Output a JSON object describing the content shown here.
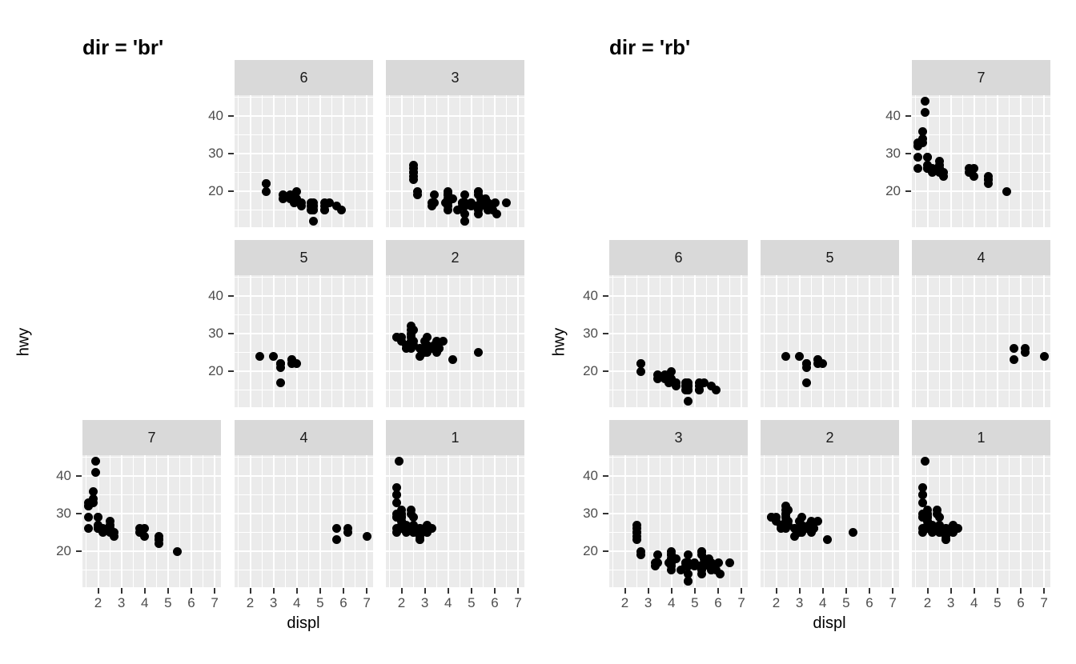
{
  "figure": {
    "background": "#FFFFFF"
  },
  "style": {
    "panel_bg": "#EBEBEB",
    "strip_bg": "#D9D9D9",
    "gridline": "#FFFFFF",
    "point_color": "#000000",
    "tick_color": "#333333",
    "tick_label_color": "#4D4D4D",
    "strip_text_color": "#1A1A1A",
    "title_color": "#000000"
  },
  "chart_data": {
    "type": "scatter",
    "xlabel": "displ",
    "ylabel": "hwy",
    "x_ticks": [
      2,
      3,
      4,
      5,
      6,
      7
    ],
    "y_ticks": [
      20,
      30,
      40
    ],
    "x_minor": [
      1.5,
      2.5,
      3.5,
      4.5,
      5.5,
      6.5
    ],
    "y_minor": [
      15,
      25,
      35,
      45
    ],
    "x_domain": [
      1.33,
      7.27
    ],
    "y_domain": [
      10.4,
      45.6
    ],
    "grid": "on",
    "legend": "none",
    "plots": [
      {
        "title": "dir = 'br'",
        "facet_layout": [
          [
            null,
            "6",
            "3"
          ],
          [
            null,
            "5",
            "2"
          ],
          [
            "7",
            "4",
            "1"
          ]
        ]
      },
      {
        "title": "dir = 'rb'",
        "facet_layout": [
          [
            null,
            null,
            "7"
          ],
          [
            "6",
            "5",
            "4"
          ],
          [
            "3",
            "2",
            "1"
          ]
        ]
      }
    ],
    "facet_points": {
      "1": [
        [
          1.8,
          29
        ],
        [
          1.8,
          29
        ],
        [
          2,
          31
        ],
        [
          2,
          30
        ],
        [
          2.8,
          26
        ],
        [
          2.8,
          26
        ],
        [
          3.1,
          27
        ],
        [
          1.8,
          26
        ],
        [
          1.8,
          25
        ],
        [
          2,
          28
        ],
        [
          2,
          27
        ],
        [
          2.8,
          25
        ],
        [
          2.8,
          25
        ],
        [
          3.1,
          25
        ],
        [
          3.1,
          25
        ],
        [
          1.8,
          30
        ],
        [
          1.8,
          33
        ],
        [
          1.8,
          35
        ],
        [
          1.8,
          37
        ],
        [
          1.8,
          35
        ],
        [
          2,
          29
        ],
        [
          2,
          26
        ],
        [
          2,
          29
        ],
        [
          2,
          28
        ],
        [
          2.8,
          24
        ],
        [
          1.9,
          44
        ],
        [
          2,
          29
        ],
        [
          2,
          29
        ],
        [
          2,
          30
        ],
        [
          2,
          26
        ],
        [
          2.5,
          29
        ],
        [
          2.5,
          26
        ],
        [
          2.8,
          23
        ],
        [
          2.8,
          23
        ],
        [
          2.2,
          26
        ],
        [
          2.2,
          27
        ],
        [
          2.4,
          30
        ],
        [
          2.4,
          31
        ],
        [
          3,
          26
        ],
        [
          3,
          26
        ],
        [
          3.3,
          26
        ],
        [
          2.2,
          26
        ],
        [
          2.2,
          25
        ],
        [
          2.5,
          25
        ],
        [
          2.5,
          27
        ],
        [
          2.5,
          25
        ],
        [
          2.5,
          26
        ]
      ],
      "2": [
        [
          2.8,
          24
        ],
        [
          3.1,
          25
        ],
        [
          4.2,
          23
        ],
        [
          2.4,
          30
        ],
        [
          2.4,
          29
        ],
        [
          3.1,
          29
        ],
        [
          3.5,
          27
        ],
        [
          3.6,
          26
        ],
        [
          2.4,
          26
        ],
        [
          2.4,
          27
        ],
        [
          2.4,
          30
        ],
        [
          2.5,
          28
        ],
        [
          3.3,
          26
        ],
        [
          2.4,
          29
        ],
        [
          2.4,
          32
        ],
        [
          2.5,
          31
        ],
        [
          2.5,
          27
        ],
        [
          3.5,
          26
        ],
        [
          3.5,
          27
        ],
        [
          3,
          26
        ],
        [
          3,
          25
        ],
        [
          3.5,
          25
        ],
        [
          3.1,
          26
        ],
        [
          3.1,
          27
        ],
        [
          3.4,
          27
        ],
        [
          3.8,
          28
        ],
        [
          5.3,
          25
        ],
        [
          2.2,
          26
        ],
        [
          2.2,
          27
        ],
        [
          2.4,
          28
        ],
        [
          2.4,
          31
        ],
        [
          3,
          26
        ],
        [
          3,
          28
        ],
        [
          3.5,
          28
        ],
        [
          1.8,
          29
        ],
        [
          1.8,
          29
        ],
        [
          2,
          28
        ],
        [
          2,
          29
        ],
        [
          2.8,
          26
        ],
        [
          2.8,
          26
        ],
        [
          3.6,
          26
        ]
      ],
      "3": [
        [
          5.3,
          20
        ],
        [
          5.3,
          15
        ],
        [
          5.3,
          20
        ],
        [
          5.7,
          17
        ],
        [
          6,
          17
        ],
        [
          5.3,
          14
        ],
        [
          5.3,
          19
        ],
        [
          5.7,
          15
        ],
        [
          6.5,
          17
        ],
        [
          3.9,
          17
        ],
        [
          4.7,
          17
        ],
        [
          4.7,
          12
        ],
        [
          4.7,
          16
        ],
        [
          5.2,
          16
        ],
        [
          5.2,
          16
        ],
        [
          5.9,
          15
        ],
        [
          4.6,
          17
        ],
        [
          5.4,
          17
        ],
        [
          5.4,
          18
        ],
        [
          4,
          17
        ],
        [
          4,
          17
        ],
        [
          4,
          19
        ],
        [
          4,
          19
        ],
        [
          4.6,
          17
        ],
        [
          5,
          17
        ],
        [
          4,
          20
        ],
        [
          4,
          19
        ],
        [
          4,
          18
        ],
        [
          4.7,
          19
        ],
        [
          4.7,
          14
        ],
        [
          4.7,
          12
        ],
        [
          5.7,
          16
        ],
        [
          6.1,
          14
        ],
        [
          4,
          15
        ],
        [
          4.2,
          18
        ],
        [
          4.4,
          15
        ],
        [
          4.6,
          16
        ],
        [
          5.4,
          16
        ],
        [
          5.4,
          17
        ],
        [
          5.4,
          18
        ],
        [
          4,
          17
        ],
        [
          4,
          19
        ],
        [
          4.6,
          17
        ],
        [
          5,
          16
        ],
        [
          3.3,
          17
        ],
        [
          3.3,
          16
        ],
        [
          4,
          16
        ],
        [
          5.6,
          18
        ],
        [
          2.5,
          26
        ],
        [
          2.5,
          27
        ],
        [
          2.5,
          25
        ],
        [
          2.5,
          23
        ],
        [
          2.5,
          24
        ],
        [
          2.5,
          25
        ],
        [
          2.7,
          20
        ],
        [
          2.7,
          19
        ],
        [
          3.4,
          17
        ],
        [
          3.4,
          19
        ],
        [
          4,
          18
        ],
        [
          4.7,
          17
        ],
        [
          4.7,
          16
        ],
        [
          5.7,
          15
        ]
      ],
      "4": [
        [
          5.7,
          26
        ],
        [
          5.7,
          23
        ],
        [
          6.2,
          26
        ],
        [
          6.2,
          25
        ],
        [
          7,
          24
        ]
      ],
      "5": [
        [
          2.4,
          24
        ],
        [
          3,
          24
        ],
        [
          3.3,
          22
        ],
        [
          3.3,
          22
        ],
        [
          3.3,
          22
        ],
        [
          3.3,
          21
        ],
        [
          3.3,
          17
        ],
        [
          3.8,
          23
        ],
        [
          3.8,
          22
        ],
        [
          3.8,
          23
        ],
        [
          4,
          22
        ]
      ],
      "6": [
        [
          3.7,
          19
        ],
        [
          3.7,
          18
        ],
        [
          3.9,
          17
        ],
        [
          3.9,
          17
        ],
        [
          4.7,
          16
        ],
        [
          4.7,
          16
        ],
        [
          4.7,
          15
        ],
        [
          5.2,
          17
        ],
        [
          5.2,
          15
        ],
        [
          4.7,
          16
        ],
        [
          4.7,
          17
        ],
        [
          4.7,
          15
        ],
        [
          4.7,
          12
        ],
        [
          4.7,
          16
        ],
        [
          4.7,
          15
        ],
        [
          5.2,
          16
        ],
        [
          5.2,
          15
        ],
        [
          5.7,
          16
        ],
        [
          5.9,
          15
        ],
        [
          4.2,
          17
        ],
        [
          4.2,
          16
        ],
        [
          4.6,
          16
        ],
        [
          4.6,
          16
        ],
        [
          4.6,
          17
        ],
        [
          4.6,
          15
        ],
        [
          5.4,
          17
        ],
        [
          2.7,
          22
        ],
        [
          2.7,
          20
        ],
        [
          2.7,
          22
        ],
        [
          3.4,
          18
        ],
        [
          3.4,
          19
        ],
        [
          4,
          18
        ],
        [
          4,
          20
        ]
      ],
      "7": [
        [
          1.9,
          44
        ],
        [
          1.9,
          41
        ],
        [
          2,
          29
        ],
        [
          2,
          26
        ],
        [
          2.5,
          28
        ],
        [
          2.5,
          26
        ],
        [
          1.6,
          33
        ],
        [
          1.6,
          32
        ],
        [
          1.6,
          32
        ],
        [
          1.6,
          29
        ],
        [
          1.6,
          26
        ],
        [
          1.8,
          33
        ],
        [
          1.8,
          36
        ],
        [
          1.8,
          34
        ],
        [
          2,
          29
        ],
        [
          3.8,
          26
        ],
        [
          3.8,
          25
        ],
        [
          4,
          26
        ],
        [
          4,
          24
        ],
        [
          4.6,
          23
        ],
        [
          4.6,
          24
        ],
        [
          4.6,
          22
        ],
        [
          4.6,
          23
        ],
        [
          5.4,
          20
        ],
        [
          2,
          26
        ],
        [
          2,
          27
        ],
        [
          2,
          26
        ],
        [
          2,
          26
        ],
        [
          2.7,
          24
        ],
        [
          2.7,
          25
        ],
        [
          2.2,
          26
        ],
        [
          2.2,
          25
        ],
        [
          2.5,
          26
        ],
        [
          2.5,
          25
        ],
        [
          2.5,
          27
        ]
      ]
    }
  }
}
